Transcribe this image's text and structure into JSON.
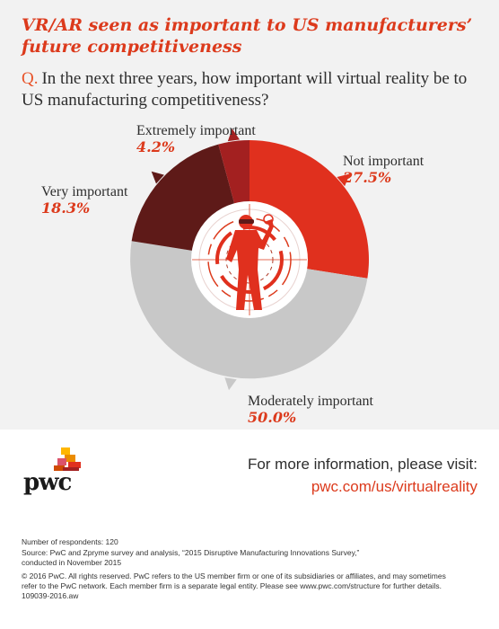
{
  "header": {
    "title": "VR/AR seen as important to US manufacturers’ future competitiveness",
    "question_prefix": "Q.",
    "question": "In the next three years, how important will virtual reality be to US manufacturing competitiveness?"
  },
  "chart_data": {
    "type": "pie",
    "title": "VR/AR seen as important to US manufacturers’ future competitiveness",
    "slices": [
      {
        "label": "Not important",
        "value": 27.5,
        "value_label": "27.5%",
        "color": "#e0301e"
      },
      {
        "label": "Moderately important",
        "value": 50.0,
        "value_label": "50.0%",
        "color": "#c8c8c8"
      },
      {
        "label": "Very important",
        "value": 18.3,
        "value_label": "18.3%",
        "color": "#5e1a18"
      },
      {
        "label": "Extremely important",
        "value": 4.2,
        "value_label": "4.2%",
        "color": "#a32020"
      }
    ],
    "start_angle_deg": 0,
    "direction": "clockwise",
    "donut": true
  },
  "icons": {
    "center": "vr-user-illustration-icon",
    "brand": "pwc-logo-icon"
  },
  "footer": {
    "brand_text": "pwc",
    "info_text": "For more information, please visit:",
    "link": "pwc.com/us/virtualreality",
    "respondents": "Number of respondents: 120",
    "source_line1": "Source: PwC and Zpryme survey and analysis, “2015 Disruptive Manufacturing Innovations Survey,”",
    "source_line2": "conducted in November 2015",
    "copyright_line1": "© 2016 PwC. All rights reserved. PwC refers to the US member firm or one of its subsidiaries or affiliates, and may sometimes",
    "copyright_line2": "refer to the PwC network. Each member firm is a separate legal entity. Please see www.pwc.com/structure for further details.",
    "code": "109039-2016.aw"
  },
  "colors": {
    "accent": "#dc3a1c",
    "background_top": "#f2f2f2",
    "background_bottom": "#ffffff"
  }
}
